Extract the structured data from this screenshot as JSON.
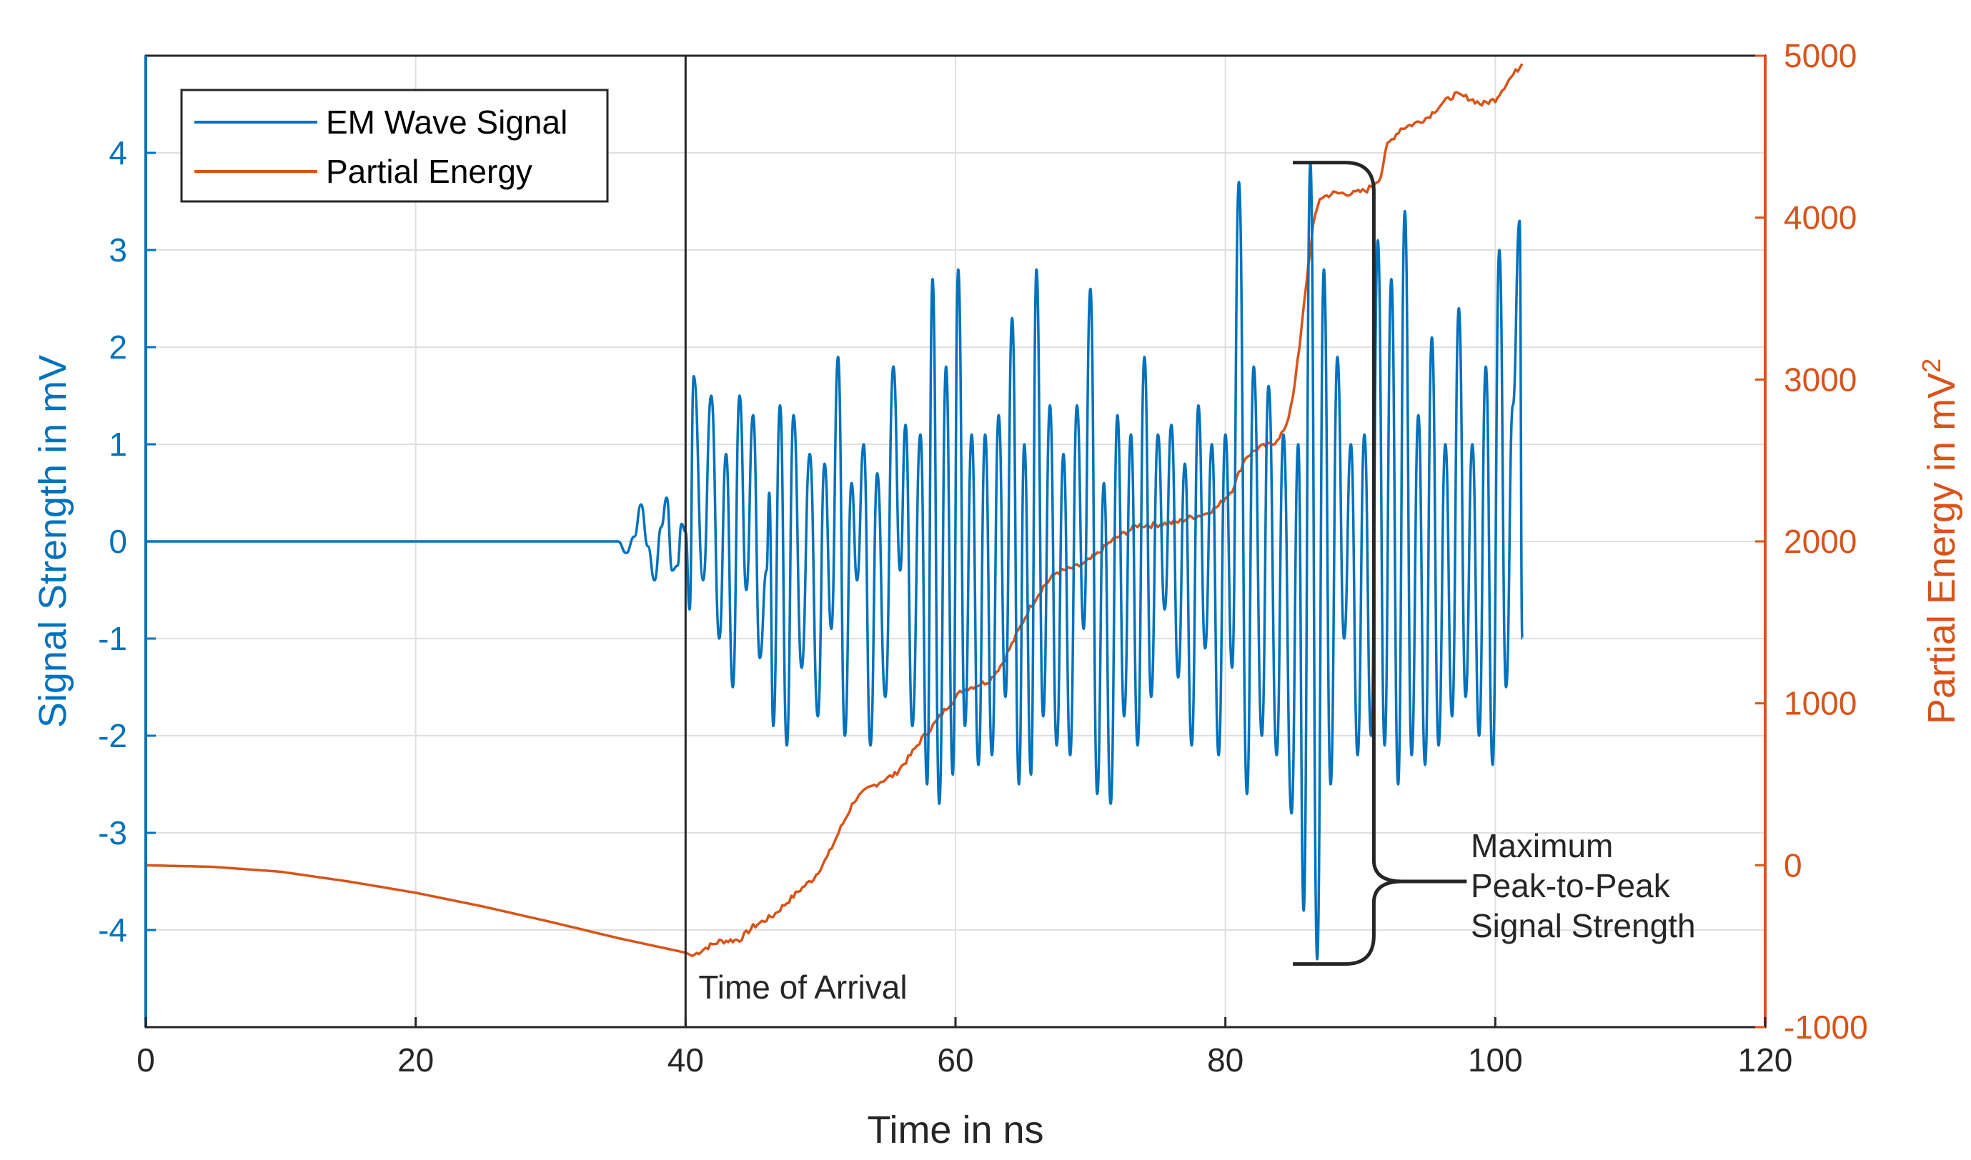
{
  "chart_data": {
    "type": "line",
    "xlabel": "Time in ns",
    "ylabel_left": "Signal Strength in mV",
    "ylabel_right_base": "Partial Energy in mV",
    "ylabel_right_sup": "2",
    "xlim": [
      0,
      120
    ],
    "ylim_left": [
      -5,
      5
    ],
    "ylim_right": [
      -1000,
      5000
    ],
    "xticks": [
      "0",
      "20",
      "40",
      "60",
      "80",
      "100",
      "120"
    ],
    "yticks_left": [
      "4",
      "3",
      "2",
      "1",
      "0",
      "-1",
      "-2",
      "-3",
      "-4"
    ],
    "yticks_right": [
      "5000",
      "4000",
      "3000",
      "2000",
      "1000",
      "0",
      "-1000"
    ],
    "grid": true,
    "legend_position": "top-left",
    "series": [
      {
        "name": "EM Wave Signal",
        "axis": "left",
        "color": "#0072BD",
        "precursor": [
          [
            0,
            0
          ],
          [
            35.0,
            0
          ],
          [
            35.6,
            -0.12
          ],
          [
            36.2,
            0.05
          ],
          [
            36.7,
            0.38
          ],
          [
            37.2,
            -0.05
          ],
          [
            37.7,
            -0.4
          ],
          [
            38.2,
            0.15
          ],
          [
            38.6,
            0.45
          ],
          [
            39.0,
            -0.3
          ],
          [
            39.4,
            -0.25
          ],
          [
            39.7,
            0.18
          ],
          [
            40.0,
            0.1
          ]
        ],
        "peaks": [
          [
            40.3,
            -0.7
          ],
          [
            40.6,
            1.7
          ],
          [
            41.3,
            -0.4
          ],
          [
            41.9,
            1.5
          ],
          [
            42.5,
            -1.0
          ],
          [
            43.0,
            0.9
          ],
          [
            43.5,
            -1.5
          ],
          [
            44.0,
            1.5
          ],
          [
            44.5,
            -0.5
          ],
          [
            45.0,
            1.3
          ],
          [
            45.5,
            -1.2
          ],
          [
            46.0,
            -0.3
          ],
          [
            46.2,
            0.5
          ],
          [
            46.5,
            -1.9
          ],
          [
            47.0,
            1.4
          ],
          [
            47.5,
            -2.1
          ],
          [
            48.0,
            1.3
          ],
          [
            48.6,
            -1.3
          ],
          [
            49.2,
            0.9
          ],
          [
            49.8,
            -1.8
          ],
          [
            50.3,
            0.8
          ],
          [
            50.8,
            -0.9
          ],
          [
            51.3,
            1.9
          ],
          [
            51.8,
            -2.0
          ],
          [
            52.3,
            0.6
          ],
          [
            52.7,
            -0.4
          ],
          [
            53.2,
            1.0
          ],
          [
            53.7,
            -2.1
          ],
          [
            54.2,
            0.7
          ],
          [
            54.8,
            -1.6
          ],
          [
            55.4,
            1.8
          ],
          [
            55.9,
            -0.3
          ],
          [
            56.3,
            1.2
          ],
          [
            56.8,
            -1.9
          ],
          [
            57.4,
            1.1
          ],
          [
            57.9,
            -2.5
          ],
          [
            58.3,
            2.7
          ],
          [
            58.8,
            -2.7
          ],
          [
            59.3,
            1.8
          ],
          [
            59.8,
            -2.4
          ],
          [
            60.2,
            2.8
          ],
          [
            60.7,
            -1.9
          ],
          [
            61.2,
            1.1
          ],
          [
            61.7,
            -2.3
          ],
          [
            62.2,
            1.1
          ],
          [
            62.7,
            -2.2
          ],
          [
            63.2,
            1.3
          ],
          [
            63.7,
            -1.6
          ],
          [
            64.2,
            2.3
          ],
          [
            64.7,
            -2.5
          ],
          [
            65.1,
            1.0
          ],
          [
            65.6,
            -2.4
          ],
          [
            66.0,
            2.8
          ],
          [
            66.5,
            -1.8
          ],
          [
            67.0,
            1.4
          ],
          [
            67.5,
            -2.1
          ],
          [
            68.0,
            0.9
          ],
          [
            68.5,
            -2.2
          ],
          [
            69.0,
            1.4
          ],
          [
            69.5,
            -0.9
          ],
          [
            70.0,
            2.6
          ],
          [
            70.5,
            -2.6
          ],
          [
            71.0,
            0.6
          ],
          [
            71.5,
            -2.7
          ],
          [
            72.0,
            1.3
          ],
          [
            72.5,
            -1.8
          ],
          [
            73.0,
            1.1
          ],
          [
            73.5,
            -2.1
          ],
          [
            74.0,
            1.9
          ],
          [
            74.5,
            -1.6
          ],
          [
            75.0,
            1.1
          ],
          [
            75.5,
            -0.7
          ],
          [
            76.0,
            1.2
          ],
          [
            76.5,
            -1.4
          ],
          [
            77.0,
            0.8
          ],
          [
            77.5,
            -2.1
          ],
          [
            78.0,
            1.4
          ],
          [
            78.5,
            -1.1
          ],
          [
            79.0,
            1.0
          ],
          [
            79.5,
            -2.2
          ],
          [
            80.0,
            1.1
          ],
          [
            80.5,
            -1.3
          ],
          [
            81.0,
            3.7
          ],
          [
            81.6,
            -2.6
          ],
          [
            82.1,
            1.8
          ],
          [
            82.7,
            -2.0
          ],
          [
            83.2,
            1.6
          ],
          [
            83.8,
            -2.2
          ],
          [
            84.3,
            1.1
          ],
          [
            84.9,
            -2.8
          ],
          [
            85.4,
            1.0
          ],
          [
            85.8,
            -3.8
          ],
          [
            86.3,
            3.9
          ],
          [
            86.8,
            -4.3
          ],
          [
            87.3,
            2.8
          ],
          [
            87.8,
            -2.5
          ],
          [
            88.3,
            1.9
          ],
          [
            88.8,
            -1.0
          ],
          [
            89.3,
            1.0
          ],
          [
            89.8,
            -2.2
          ],
          [
            90.3,
            1.1
          ],
          [
            90.8,
            -2.0
          ],
          [
            91.3,
            3.1
          ],
          [
            91.8,
            -2.1
          ],
          [
            92.3,
            2.7
          ],
          [
            92.8,
            -2.5
          ],
          [
            93.3,
            3.4
          ],
          [
            93.8,
            -2.2
          ],
          [
            94.3,
            1.3
          ],
          [
            94.8,
            -2.3
          ],
          [
            95.3,
            2.1
          ],
          [
            95.8,
            -2.1
          ],
          [
            96.3,
            1.0
          ],
          [
            96.8,
            -1.8
          ],
          [
            97.3,
            2.4
          ],
          [
            97.8,
            -1.6
          ],
          [
            98.3,
            1.0
          ],
          [
            98.8,
            -2.0
          ],
          [
            99.3,
            1.8
          ],
          [
            99.8,
            -2.3
          ],
          [
            100.3,
            3.0
          ],
          [
            100.8,
            -1.5
          ],
          [
            101.3,
            1.4
          ],
          [
            101.8,
            3.3
          ],
          [
            102.0,
            -1.0
          ]
        ]
      },
      {
        "name": "Partial Energy",
        "axis": "right",
        "color": "#D95319",
        "points": [
          [
            0,
            0
          ],
          [
            5,
            -10
          ],
          [
            10,
            -40
          ],
          [
            15,
            -100
          ],
          [
            20,
            -170
          ],
          [
            25,
            -255
          ],
          [
            30,
            -350
          ],
          [
            35,
            -450
          ],
          [
            40,
            -540
          ],
          [
            40.5,
            -560
          ],
          [
            41.5,
            -510
          ],
          [
            42.5,
            -470
          ],
          [
            44,
            -460
          ],
          [
            45,
            -380
          ],
          [
            46.5,
            -310
          ],
          [
            47.5,
            -230
          ],
          [
            48.5,
            -150
          ],
          [
            49.5,
            -80
          ],
          [
            50.5,
            50
          ],
          [
            51.5,
            230
          ],
          [
            52.5,
            400
          ],
          [
            53.5,
            470
          ],
          [
            54.5,
            520
          ],
          [
            55.5,
            560
          ],
          [
            56.5,
            660
          ],
          [
            57.5,
            780
          ],
          [
            58.5,
            880
          ],
          [
            59.5,
            990
          ],
          [
            60.5,
            1080
          ],
          [
            61.5,
            1110
          ],
          [
            62.5,
            1140
          ],
          [
            63.5,
            1250
          ],
          [
            64.5,
            1420
          ],
          [
            65.5,
            1590
          ],
          [
            66.5,
            1720
          ],
          [
            67.5,
            1810
          ],
          [
            68.5,
            1830
          ],
          [
            69.5,
            1860
          ],
          [
            70.5,
            1920
          ],
          [
            71.5,
            2000
          ],
          [
            72.5,
            2050
          ],
          [
            73.5,
            2100
          ],
          [
            74.5,
            2100
          ],
          [
            75.5,
            2110
          ],
          [
            76.5,
            2120
          ],
          [
            77.5,
            2150
          ],
          [
            78.5,
            2170
          ],
          [
            79.5,
            2220
          ],
          [
            80.5,
            2320
          ],
          [
            81.5,
            2520
          ],
          [
            82.5,
            2580
          ],
          [
            83.5,
            2600
          ],
          [
            84.5,
            2700
          ],
          [
            85.0,
            2900
          ],
          [
            85.5,
            3200
          ],
          [
            86.0,
            3600
          ],
          [
            86.5,
            3950
          ],
          [
            87.0,
            4120
          ],
          [
            88.0,
            4150
          ],
          [
            89.5,
            4150
          ],
          [
            90.5,
            4170
          ],
          [
            91.5,
            4250
          ],
          [
            92.0,
            4450
          ],
          [
            93.0,
            4550
          ],
          [
            94.0,
            4580
          ],
          [
            95.0,
            4620
          ],
          [
            96.0,
            4700
          ],
          [
            97.0,
            4760
          ],
          [
            98.0,
            4740
          ],
          [
            99.0,
            4700
          ],
          [
            100.0,
            4730
          ],
          [
            101.0,
            4850
          ],
          [
            101.5,
            4900
          ],
          [
            102.0,
            4950
          ]
        ]
      }
    ],
    "annotations": {
      "time_of_arrival_x": 40,
      "time_of_arrival_label": "Time of Arrival",
      "peak_bracket_x_range": [
        85,
        91
      ],
      "peak_bracket_y_range": [
        -4.35,
        3.9
      ],
      "peak_label_lines": [
        "Maximum",
        "Peak-to-Peak",
        "Signal Strength"
      ]
    }
  }
}
